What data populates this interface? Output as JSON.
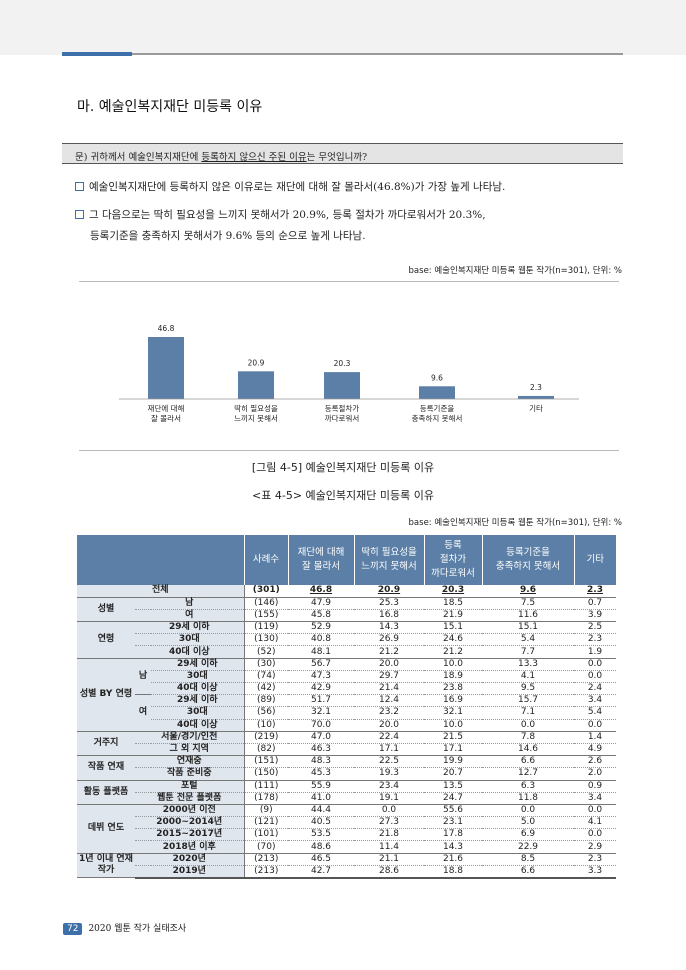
{
  "section_title": "마. 예술인복지재단 미등록 이유",
  "question": {
    "prefix": "문) 귀하께서 예술인복지재단에 ",
    "underlined": "등록하지 않으신 주된 이유",
    "suffix": "는 무엇입니까?"
  },
  "bullets": [
    {
      "line1": "예술인복지재단에 등록하지 않은 이유로는 재단에 대해 잘 몰라서(46.8%)가 가장 높게 나타남."
    },
    {
      "line1": "그 다음으로는 딱히 필요성을 느끼지 못해서가 20.9%, 등록 절차가 까다로워서가 20.3%,",
      "line2": "등록기준을 충족하지 못해서가 9.6% 등의 순으로 높게 나타남."
    }
  ],
  "base_chart": "base: 예술인복지재단 미등록 웹툰 작가(n=301), 단위: %",
  "chart_data": {
    "type": "bar",
    "categories": [
      [
        "재단에 대해",
        "잘 몰라서"
      ],
      [
        "딱히 필요성을",
        "느끼지 못해서"
      ],
      [
        "등록절차가",
        "까다로워서"
      ],
      [
        "등록기준을",
        "충족하지 못해서"
      ],
      [
        "기타"
      ]
    ],
    "values": [
      46.8,
      20.9,
      20.3,
      9.6,
      2.3
    ],
    "value_labels": [
      "46.8",
      "20.9",
      "20.3",
      "9.6",
      "2.3"
    ],
    "ylim": [
      0,
      50
    ],
    "bar_color": "#5b7fa6"
  },
  "figure_caption": "[그림 4-5] 예술인복지재단 미등록 이유",
  "table_caption": "<표 4-5> 예술인복지재단 미등록 이유",
  "base_table": "base: 예술인복지재단 미등록 웹툰 작가(n=301), 단위: %",
  "table": {
    "headers": [
      "사례수",
      "재단에 대해 잘 몰라서",
      "딱히 필요성을 느끼지 못해서",
      "등록 절차가 까다로워서",
      "등록기준을 충족하지 못해서",
      "기타"
    ],
    "total": {
      "label": "전체",
      "n": "(301)",
      "v": [
        "46.8",
        "20.9",
        "20.3",
        "9.6",
        "2.3"
      ]
    },
    "groups": {
      "gender": "성별",
      "age": "연령",
      "gender_age": "성별 BY 연령",
      "male": "남",
      "female": "여",
      "region": "거주지",
      "serial": "작품 연재",
      "platform": "활동 플랫폼",
      "debut": "데뷔 연도",
      "within1": "1년 이내 연재 작가"
    },
    "rows": {
      "g1": {
        "label": "남",
        "n": "(146)",
        "v": [
          "47.9",
          "25.3",
          "18.5",
          "7.5",
          "0.7"
        ]
      },
      "g2": {
        "label": "여",
        "n": "(155)",
        "v": [
          "45.8",
          "16.8",
          "21.9",
          "11.6",
          "3.9"
        ]
      },
      "a1": {
        "label": "29세 이하",
        "n": "(119)",
        "v": [
          "52.9",
          "14.3",
          "15.1",
          "15.1",
          "2.5"
        ]
      },
      "a2": {
        "label": "30대",
        "n": "(130)",
        "v": [
          "40.8",
          "26.9",
          "24.6",
          "5.4",
          "2.3"
        ]
      },
      "a3": {
        "label": "40대 이상",
        "n": "(52)",
        "v": [
          "48.1",
          "21.2",
          "21.2",
          "7.7",
          "1.9"
        ]
      },
      "m1": {
        "label": "29세 이하",
        "n": "(30)",
        "v": [
          "56.7",
          "20.0",
          "10.0",
          "13.3",
          "0.0"
        ]
      },
      "m2": {
        "label": "30대",
        "n": "(74)",
        "v": [
          "47.3",
          "29.7",
          "18.9",
          "4.1",
          "0.0"
        ]
      },
      "m3": {
        "label": "40대 이상",
        "n": "(42)",
        "v": [
          "42.9",
          "21.4",
          "23.8",
          "9.5",
          "2.4"
        ]
      },
      "f1": {
        "label": "29세 이하",
        "n": "(89)",
        "v": [
          "51.7",
          "12.4",
          "16.9",
          "15.7",
          "3.4"
        ]
      },
      "f2": {
        "label": "30대",
        "n": "(56)",
        "v": [
          "32.1",
          "23.2",
          "32.1",
          "7.1",
          "5.4"
        ]
      },
      "f3": {
        "label": "40대 이상",
        "n": "(10)",
        "v": [
          "70.0",
          "20.0",
          "10.0",
          "0.0",
          "0.0"
        ]
      },
      "r1": {
        "label": "서울/경기/인천",
        "n": "(219)",
        "v": [
          "47.0",
          "22.4",
          "21.5",
          "7.8",
          "1.4"
        ]
      },
      "r2": {
        "label": "그 외 지역",
        "n": "(82)",
        "v": [
          "46.3",
          "17.1",
          "17.1",
          "14.6",
          "4.9"
        ]
      },
      "s1": {
        "label": "연재중",
        "n": "(151)",
        "v": [
          "48.3",
          "22.5",
          "19.9",
          "6.6",
          "2.6"
        ]
      },
      "s2": {
        "label": "작품 준비중",
        "n": "(150)",
        "v": [
          "45.3",
          "19.3",
          "20.7",
          "12.7",
          "2.0"
        ]
      },
      "p1": {
        "label": "포털",
        "n": "(111)",
        "v": [
          "55.9",
          "23.4",
          "13.5",
          "6.3",
          "0.9"
        ]
      },
      "p2": {
        "label": "웹툰 전문 플랫폼",
        "n": "(178)",
        "v": [
          "41.0",
          "19.1",
          "24.7",
          "11.8",
          "3.4"
        ]
      },
      "d1": {
        "label": "2000년 이전",
        "n": "(9)",
        "v": [
          "44.4",
          "0.0",
          "55.6",
          "0.0",
          "0.0"
        ]
      },
      "d2": {
        "label": "2000~2014년",
        "n": "(121)",
        "v": [
          "40.5",
          "27.3",
          "23.1",
          "5.0",
          "4.1"
        ]
      },
      "d3": {
        "label": "2015~2017년",
        "n": "(101)",
        "v": [
          "53.5",
          "21.8",
          "17.8",
          "6.9",
          "0.0"
        ]
      },
      "d4": {
        "label": "2018년 이후",
        "n": "(70)",
        "v": [
          "48.6",
          "11.4",
          "14.3",
          "22.9",
          "2.9"
        ]
      },
      "y1": {
        "label": "2020년",
        "n": "(213)",
        "v": [
          "46.5",
          "21.1",
          "21.6",
          "8.5",
          "2.3"
        ]
      },
      "y2": {
        "label": "2019년",
        "n": "(213)",
        "v": [
          "42.7",
          "28.6",
          "18.8",
          "6.6",
          "3.3"
        ]
      }
    }
  },
  "footer": {
    "page": "72",
    "title": "2020 웹툰 작가 실태조사"
  }
}
